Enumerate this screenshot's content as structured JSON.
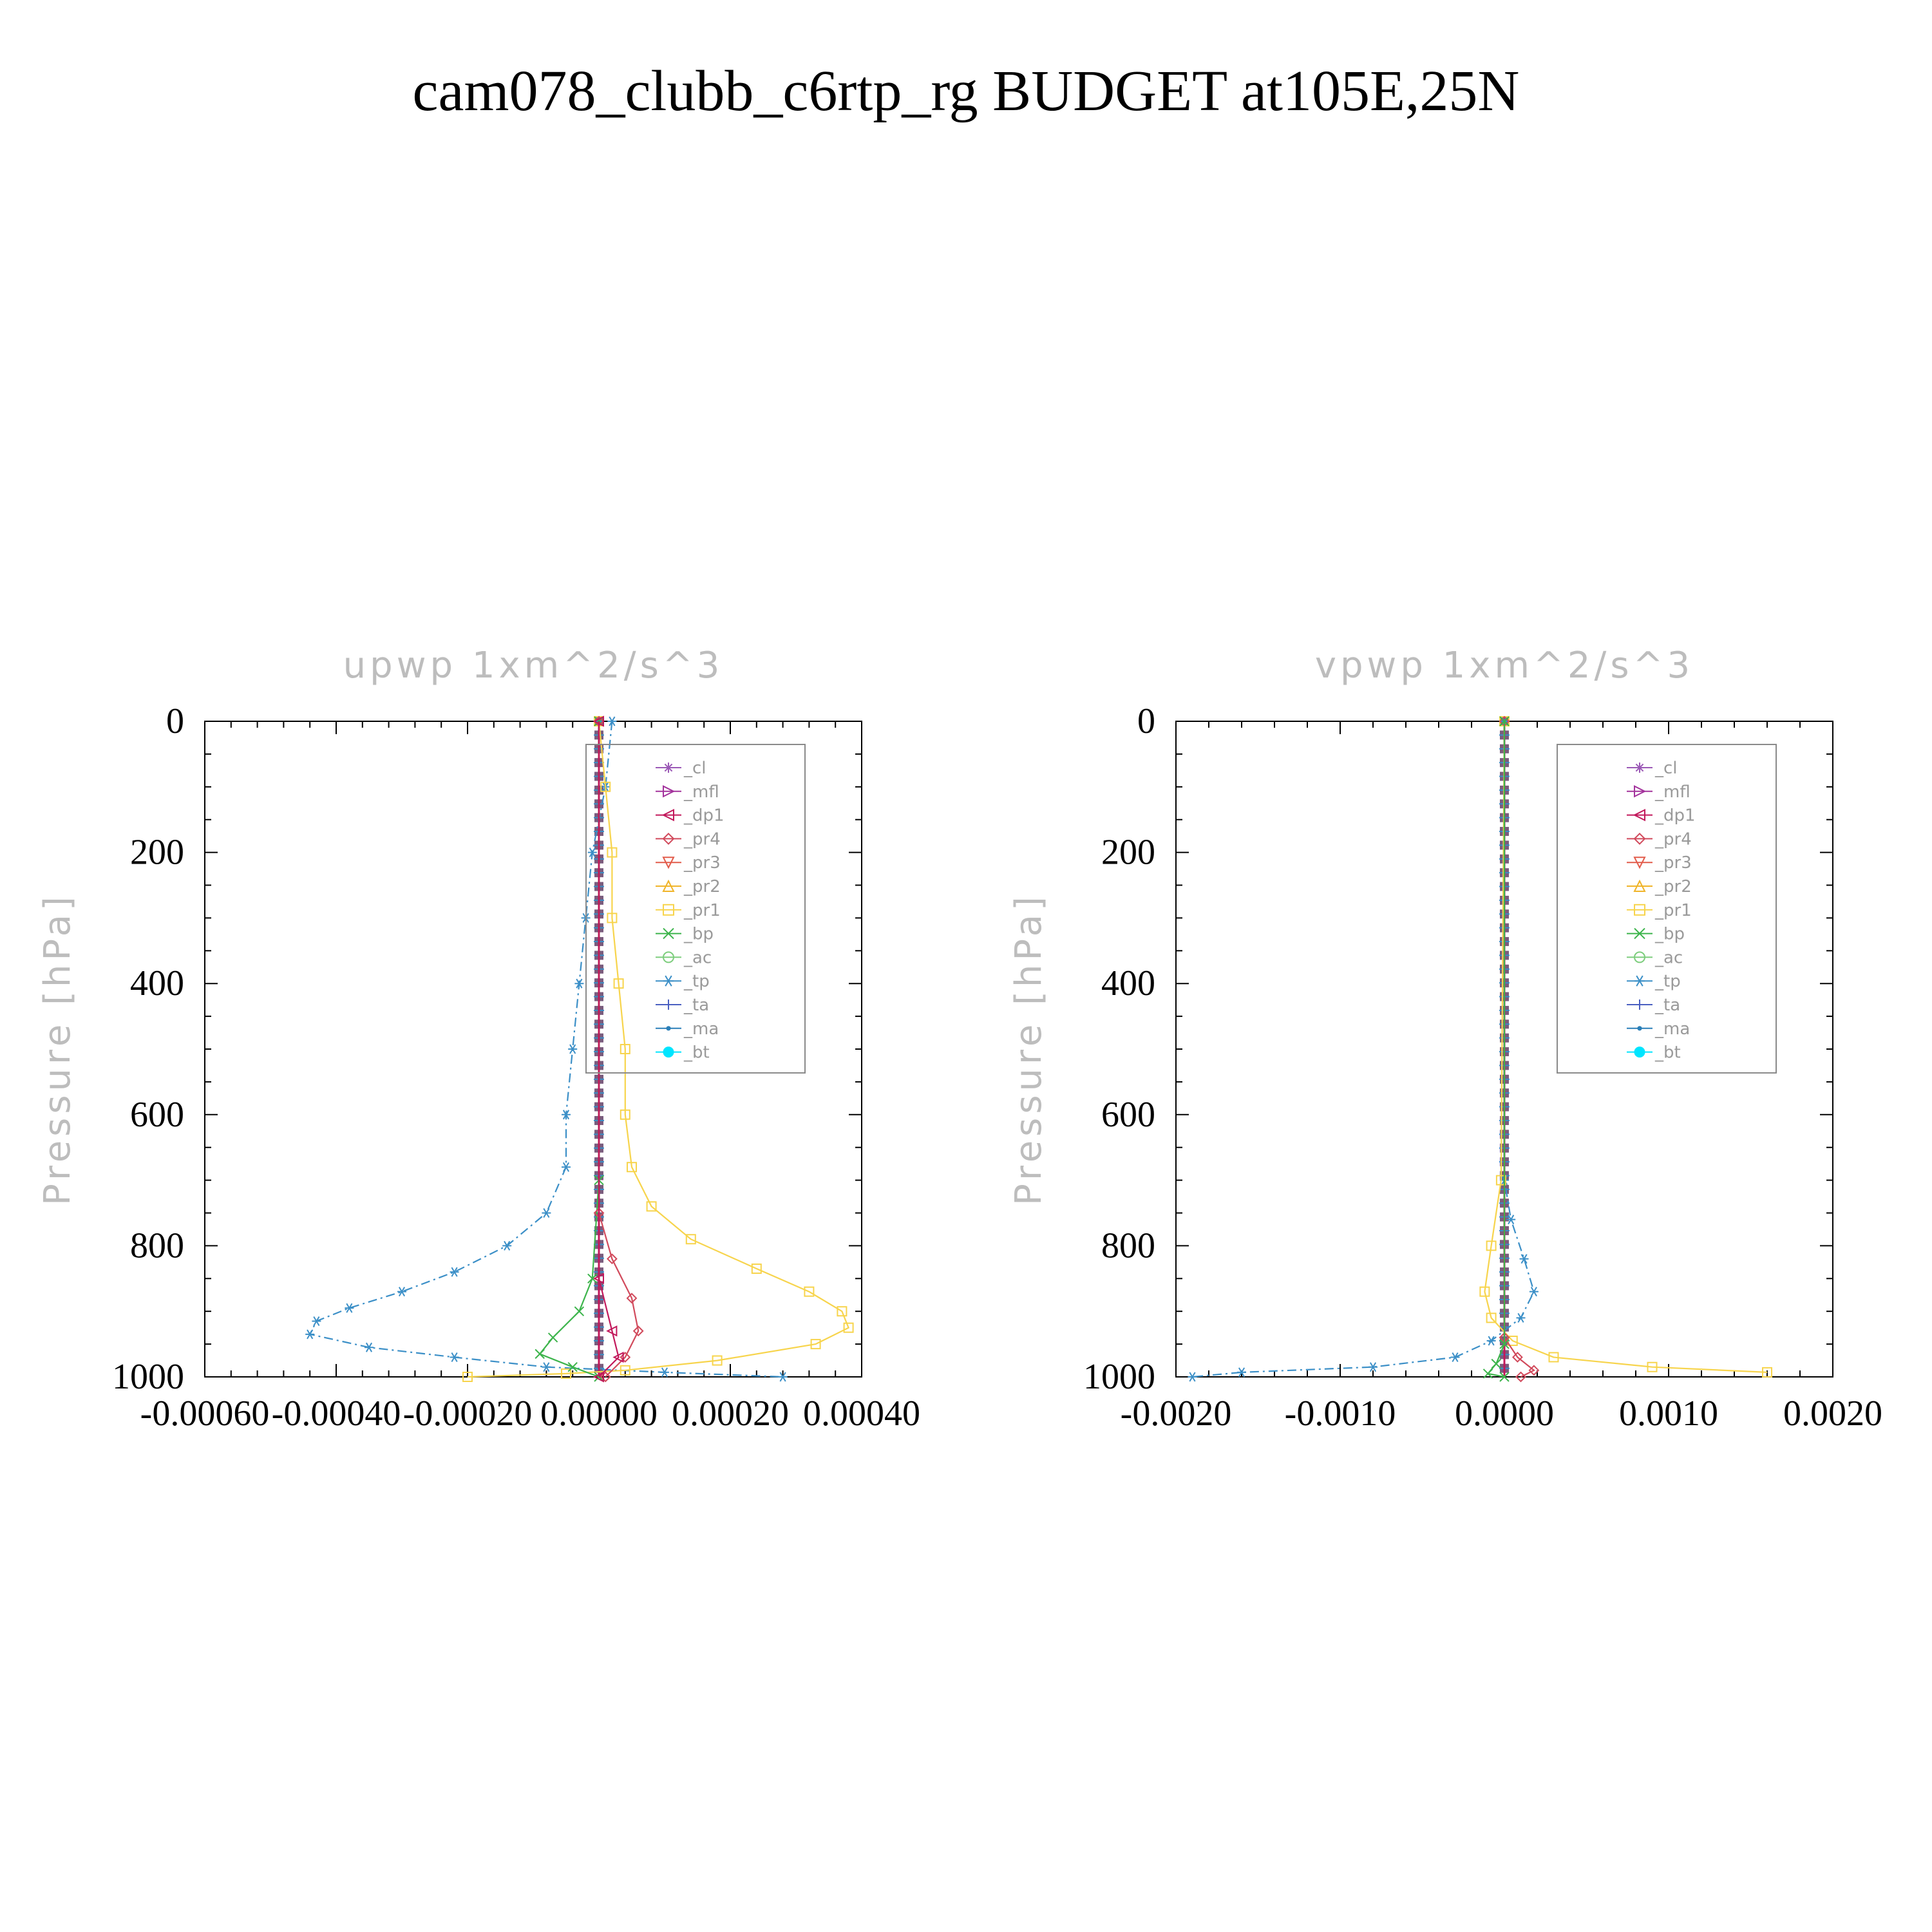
{
  "title": "cam078_clubb_c6rtp_rg  BUDGET at105E,25N",
  "legend_items": [
    {
      "label": "_cl",
      "color": "#9b59b6",
      "marker": "star"
    },
    {
      "label": "_mfl",
      "color": "#a3339c",
      "marker": "tri-right"
    },
    {
      "label": "_dp1",
      "color": "#c2185b",
      "marker": "tri-left"
    },
    {
      "label": "_pr4",
      "color": "#d1495b",
      "marker": "diamond"
    },
    {
      "label": "_pr3",
      "color": "#e25b4a",
      "marker": "tri-down"
    },
    {
      "label": "_pr2",
      "color": "#f0b429",
      "marker": "tri-up"
    },
    {
      "label": "_pr1",
      "color": "#f7d44c",
      "marker": "square"
    },
    {
      "label": "_bp",
      "color": "#3cb44b",
      "marker": "x"
    },
    {
      "label": "_ac",
      "color": "#7ccd7c",
      "marker": "circle"
    },
    {
      "label": "_tp",
      "color": "#3b8fc7",
      "marker": "asterisk"
    },
    {
      "label": "_ta",
      "color": "#4a5fc1",
      "marker": "plus"
    },
    {
      "label": "_ma",
      "color": "#2a7fb8",
      "marker": "dot"
    },
    {
      "label": "_bt",
      "color": "#00e5ff",
      "marker": "filled-circle"
    }
  ],
  "chart_data": [
    {
      "type": "line",
      "title": "upwp   1xm^2/s^3",
      "ylabel": "Pressure [hPa]",
      "xlabel": "",
      "xlim": [
        -0.0006,
        0.0004
      ],
      "ylim": [
        1000,
        0
      ],
      "y_ticks": [
        0,
        200,
        400,
        600,
        800,
        1000
      ],
      "x_ticks": [
        -0.0006,
        -0.0004,
        -0.0002,
        0.0,
        0.0002,
        0.0004
      ],
      "x_tick_labels": [
        "-0.00060",
        "-0.00040",
        "-0.00020",
        "0.00000",
        "0.00020",
        "0.00040"
      ],
      "legend": "top-right",
      "series": [
        {
          "name": "_tp",
          "color": "#3b8fc7",
          "points": [
            [
              2e-05,
              0
            ],
            [
              1e-05,
              100
            ],
            [
              -1e-05,
              200
            ],
            [
              -2e-05,
              300
            ],
            [
              -3e-05,
              400
            ],
            [
              -4e-05,
              500
            ],
            [
              -5e-05,
              600
            ],
            [
              -5e-05,
              680
            ],
            [
              -8e-05,
              750
            ],
            [
              -0.00014,
              800
            ],
            [
              -0.00022,
              840
            ],
            [
              -0.0003,
              870
            ],
            [
              -0.00038,
              895
            ],
            [
              -0.00043,
              915
            ],
            [
              -0.00044,
              935
            ],
            [
              -0.00035,
              955
            ],
            [
              -0.00022,
              970
            ],
            [
              -8e-05,
              985
            ],
            [
              0.0001,
              993
            ],
            [
              0.00028,
              1000
            ]
          ]
        },
        {
          "name": "_pr1",
          "color": "#f7d44c",
          "points": [
            [
              0.0,
              0
            ],
            [
              1e-05,
              100
            ],
            [
              2e-05,
              200
            ],
            [
              2e-05,
              300
            ],
            [
              3e-05,
              400
            ],
            [
              4e-05,
              500
            ],
            [
              4e-05,
              600
            ],
            [
              5e-05,
              680
            ],
            [
              8e-05,
              740
            ],
            [
              0.00014,
              790
            ],
            [
              0.00024,
              835
            ],
            [
              0.00032,
              870
            ],
            [
              0.00037,
              900
            ],
            [
              0.00038,
              925
            ],
            [
              0.00033,
              950
            ],
            [
              0.00018,
              975
            ],
            [
              4e-05,
              990
            ],
            [
              -5e-05,
              995
            ],
            [
              -0.0002,
              1000
            ]
          ]
        },
        {
          "name": "_bp",
          "color": "#3cb44b",
          "points": [
            [
              0.0,
              0
            ],
            [
              0.0,
              700
            ],
            [
              -1e-05,
              850
            ],
            [
              -3e-05,
              900
            ],
            [
              -7e-05,
              940
            ],
            [
              -9e-05,
              965
            ],
            [
              -4e-05,
              985
            ],
            [
              0.0,
              1000
            ]
          ]
        },
        {
          "name": "_pr4",
          "color": "#d1495b",
          "points": [
            [
              0.0,
              0
            ],
            [
              0.0,
              750
            ],
            [
              2e-05,
              820
            ],
            [
              5e-05,
              880
            ],
            [
              6e-05,
              930
            ],
            [
              4e-05,
              970
            ],
            [
              1e-05,
              1000
            ]
          ]
        },
        {
          "name": "_dp1",
          "color": "#c2185b",
          "points": [
            [
              0.0,
              0
            ],
            [
              0.0,
              850
            ],
            [
              2e-05,
              930
            ],
            [
              3e-05,
              970
            ],
            [
              0.0,
              1000
            ]
          ]
        }
      ]
    },
    {
      "type": "line",
      "title": "vpwp   1xm^2/s^3",
      "ylabel": "Pressure [hPa]",
      "xlabel": "",
      "xlim": [
        -0.002,
        0.002
      ],
      "ylim": [
        1000,
        0
      ],
      "y_ticks": [
        0,
        200,
        400,
        600,
        800,
        1000
      ],
      "x_ticks": [
        -0.002,
        -0.001,
        0.0,
        0.001,
        0.002
      ],
      "x_tick_labels": [
        "-0.0020",
        "-0.0010",
        "0.0000",
        "0.0010",
        "0.0020"
      ],
      "legend": "top-right",
      "series": [
        {
          "name": "_tp",
          "color": "#3b8fc7",
          "points": [
            [
              0.0,
              0
            ],
            [
              0.0,
              700
            ],
            [
              4e-05,
              760
            ],
            [
              0.00012,
              820
            ],
            [
              0.00018,
              870
            ],
            [
              0.0001,
              910
            ],
            [
              -8e-05,
              945
            ],
            [
              -0.0003,
              970
            ],
            [
              -0.0008,
              985
            ],
            [
              -0.0016,
              993
            ],
            [
              -0.0019,
              1000
            ]
          ]
        },
        {
          "name": "_pr1",
          "color": "#f7d44c",
          "points": [
            [
              0.0,
              0
            ],
            [
              -2e-05,
              700
            ],
            [
              -8e-05,
              800
            ],
            [
              -0.00012,
              870
            ],
            [
              -8e-05,
              910
            ],
            [
              5e-05,
              945
            ],
            [
              0.0003,
              970
            ],
            [
              0.0009,
              985
            ],
            [
              0.0016,
              993
            ]
          ]
        },
        {
          "name": "_pr4",
          "color": "#d1495b",
          "points": [
            [
              0.0,
              0
            ],
            [
              0.0,
              940
            ],
            [
              8e-05,
              970
            ],
            [
              0.00018,
              990
            ],
            [
              0.0001,
              1000
            ]
          ]
        },
        {
          "name": "_bp",
          "color": "#3cb44b",
          "points": [
            [
              0.0,
              0
            ],
            [
              0.0,
              950
            ],
            [
              -5e-05,
              980
            ],
            [
              -0.0001,
              995
            ],
            [
              0.0,
              1000
            ]
          ]
        }
      ]
    }
  ]
}
